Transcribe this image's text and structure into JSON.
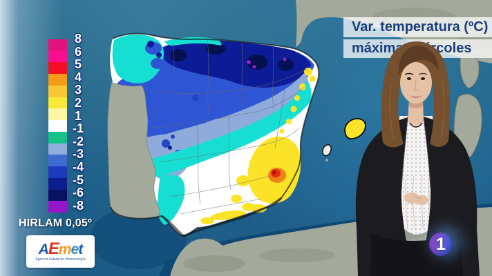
{
  "header": {
    "line1": "Var. temperatura (ºC)",
    "line2": "máxima miércoles"
  },
  "legend": {
    "labels": [
      "8",
      "6",
      "5",
      "4",
      "3",
      "2",
      "1",
      "-1",
      "-2",
      "-3",
      "-4",
      "-5",
      "-6",
      "-8"
    ],
    "band_colors": [
      "#E2137B",
      "#FB0D8F",
      "#F40E22",
      "#F49C17",
      "#F7C832",
      "#F9E838",
      "#FBF6A4",
      "#FFFFFF",
      "#14C187",
      "#93AEDC",
      "#3F6BD1",
      "#1D3ABC",
      "#0C1D8D",
      "#081263",
      "#9816C9"
    ]
  },
  "model_label": "HIRLAM 0,05º",
  "aemet": {
    "letters": [
      {
        "ch": "A",
        "color": "#1C5AA8"
      },
      {
        "ch": "E",
        "color": "#E23222"
      },
      {
        "ch": "m",
        "color": "#F09A1A"
      },
      {
        "ch": "e",
        "color": "#2C8EC8"
      },
      {
        "ch": "t",
        "color": "#1C5AA8"
      }
    ],
    "tagline": "Agencia Estatal de Meteorología"
  },
  "channel_logo": {
    "label": "1",
    "gradient_left": "#7C4AC8",
    "gradient_right": "#4A5FD8"
  },
  "map_colors": {
    "white": "#FFFFFF",
    "cyan": "#16DED2",
    "periwinkle": "#8FABDC",
    "royal": "#2E55D4",
    "blue_dot": "#2346C8",
    "navy": "#0B1C96",
    "deep_navy": "#05104F",
    "purple": "#A21AC9",
    "yellow": "#FBE428",
    "orange": "#F08018",
    "red": "#E02C12",
    "red_core": "#B81505",
    "land_gray": "#A3A99B",
    "land_dark": "#8C927F",
    "sea_dark": "#0D4672",
    "island_white": "#EFEFE8",
    "coast_black": "#0A0A0A",
    "border_gray": "#6B6B6B"
  },
  "presenter": {
    "hair": "#75512F",
    "hair_dark": "#5C3D24",
    "hair_light": "#96693F",
    "skin": "#E5C1A5",
    "skin_shadow": "#C99C7E",
    "blazer": "#1C1C20",
    "trousers": "#141418",
    "blouse": "#F6F4F2",
    "lips": "#BE7B70",
    "eyes": "#2C2018"
  }
}
